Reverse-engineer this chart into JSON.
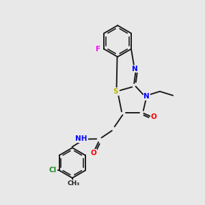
{
  "bg_color": "#e8e8e8",
  "bond_color": "#1a1a1a",
  "atom_colors": {
    "N": "#0000ff",
    "O": "#ff0000",
    "S": "#b8b800",
    "F": "#ff00ff",
    "Cl": "#228b22",
    "C": "#1a1a1a",
    "H": "#555555"
  },
  "figsize": [
    3.0,
    3.0
  ],
  "dpi": 100
}
